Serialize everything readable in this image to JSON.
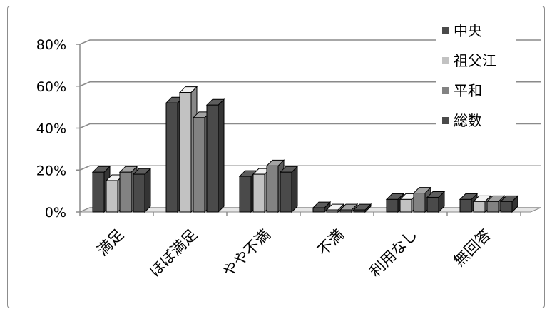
{
  "chart_data": {
    "type": "bar",
    "style": "3d-clustered",
    "categories": [
      "満足",
      "ほぼ満足",
      "やや不満",
      "不満",
      "利用なし",
      "無回答"
    ],
    "series": [
      {
        "name": "中央",
        "color": "#4a4a4a",
        "values": [
          19,
          52,
          17,
          2,
          6,
          6
        ]
      },
      {
        "name": "祖父江",
        "color": "#c2c2c2",
        "values": [
          15,
          57,
          18,
          1,
          6,
          5
        ]
      },
      {
        "name": "平和",
        "color": "#828282",
        "values": [
          19,
          45,
          22,
          1,
          9,
          5
        ]
      },
      {
        "name": "総数",
        "color": "#4a4a4a",
        "values": [
          18,
          51,
          19,
          1,
          7,
          5
        ]
      }
    ],
    "yticks": [
      "0%",
      "20%",
      "40%",
      "60%",
      "80%"
    ],
    "ylim": [
      0,
      80
    ],
    "legend_position": "top-right",
    "grid": true
  }
}
